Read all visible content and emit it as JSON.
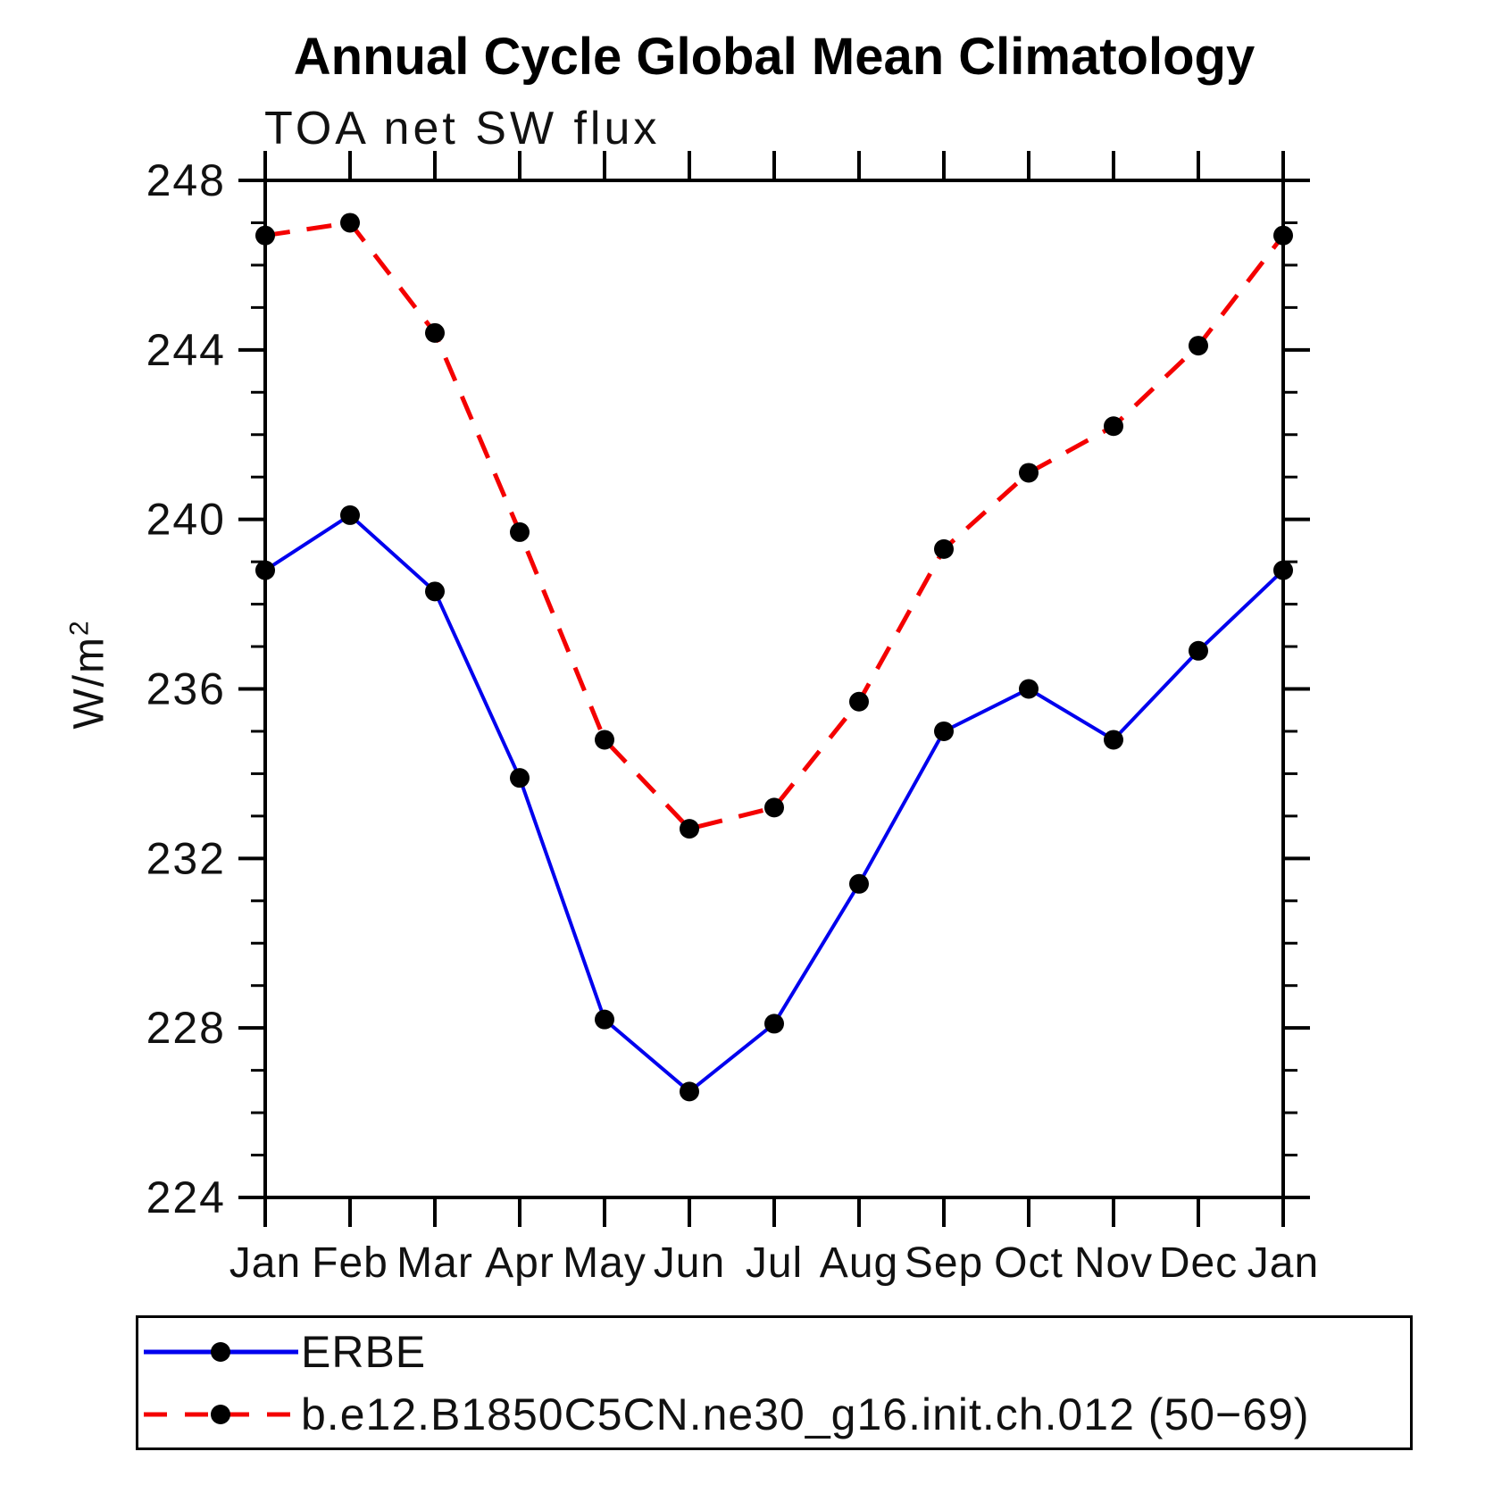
{
  "title": "Annual Cycle Global Mean Climatology",
  "subtitle": "TOA net SW flux",
  "y_axis": {
    "unit_base": "W/m",
    "unit_sup": "2",
    "tick_labels": [
      "224",
      "228",
      "232",
      "236",
      "240",
      "244",
      "248"
    ],
    "minor_step": 1
  },
  "x_axis": {
    "labels": [
      "Jan",
      "Feb",
      "Mar",
      "Apr",
      "May",
      "Jun",
      "Jul",
      "Aug",
      "Sep",
      "Oct",
      "Nov",
      "Dec",
      "Jan"
    ]
  },
  "legend": {
    "items": [
      {
        "label": "ERBE",
        "color": "#0000ee",
        "line_style": "solid"
      },
      {
        "label": "b.e12.B1850C5CN.ne30_g16.init.ch.012 (50−69)",
        "color": "#f40000",
        "line_style": "dashed"
      }
    ]
  },
  "chart_data": {
    "type": "line",
    "title": "Annual Cycle Global Mean Climatology",
    "subtitle": "TOA net SW flux",
    "xlabel": "",
    "ylabel": "W/m^2",
    "x": [
      "Jan",
      "Feb",
      "Mar",
      "Apr",
      "May",
      "Jun",
      "Jul",
      "Aug",
      "Sep",
      "Oct",
      "Nov",
      "Dec",
      "Jan"
    ],
    "ylim": [
      224,
      248
    ],
    "yticks": [
      224,
      228,
      232,
      236,
      240,
      244,
      248
    ],
    "grid": false,
    "legend_position": "bottom",
    "marker": "filled-circle",
    "marker_color": "#000000",
    "series": [
      {
        "name": "ERBE",
        "color": "#0000ee",
        "line": "solid",
        "values": [
          238.8,
          240.1,
          238.3,
          233.9,
          228.2,
          226.5,
          228.1,
          231.4,
          235.0,
          236.0,
          234.8,
          236.9,
          238.8
        ]
      },
      {
        "name": "b.e12.B1850C5CN.ne30_g16.init.ch.012 (50−69)",
        "color": "#f40000",
        "line": "dashed",
        "values": [
          246.7,
          247.0,
          244.4,
          239.7,
          234.8,
          232.7,
          233.2,
          235.7,
          239.3,
          241.1,
          242.2,
          244.1,
          246.7
        ]
      }
    ]
  }
}
